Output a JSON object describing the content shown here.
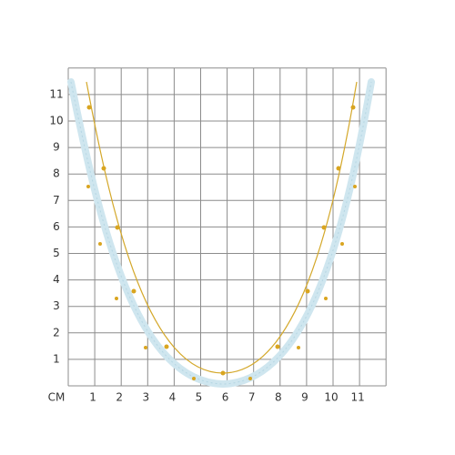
{
  "grid": {
    "unit": "CM",
    "y_labels": [
      1,
      2,
      3,
      4,
      5,
      6,
      7,
      8,
      9,
      10,
      11
    ],
    "x_labels": [
      1,
      2,
      3,
      4,
      5,
      6,
      7,
      8,
      9,
      10,
      11
    ]
  }
}
